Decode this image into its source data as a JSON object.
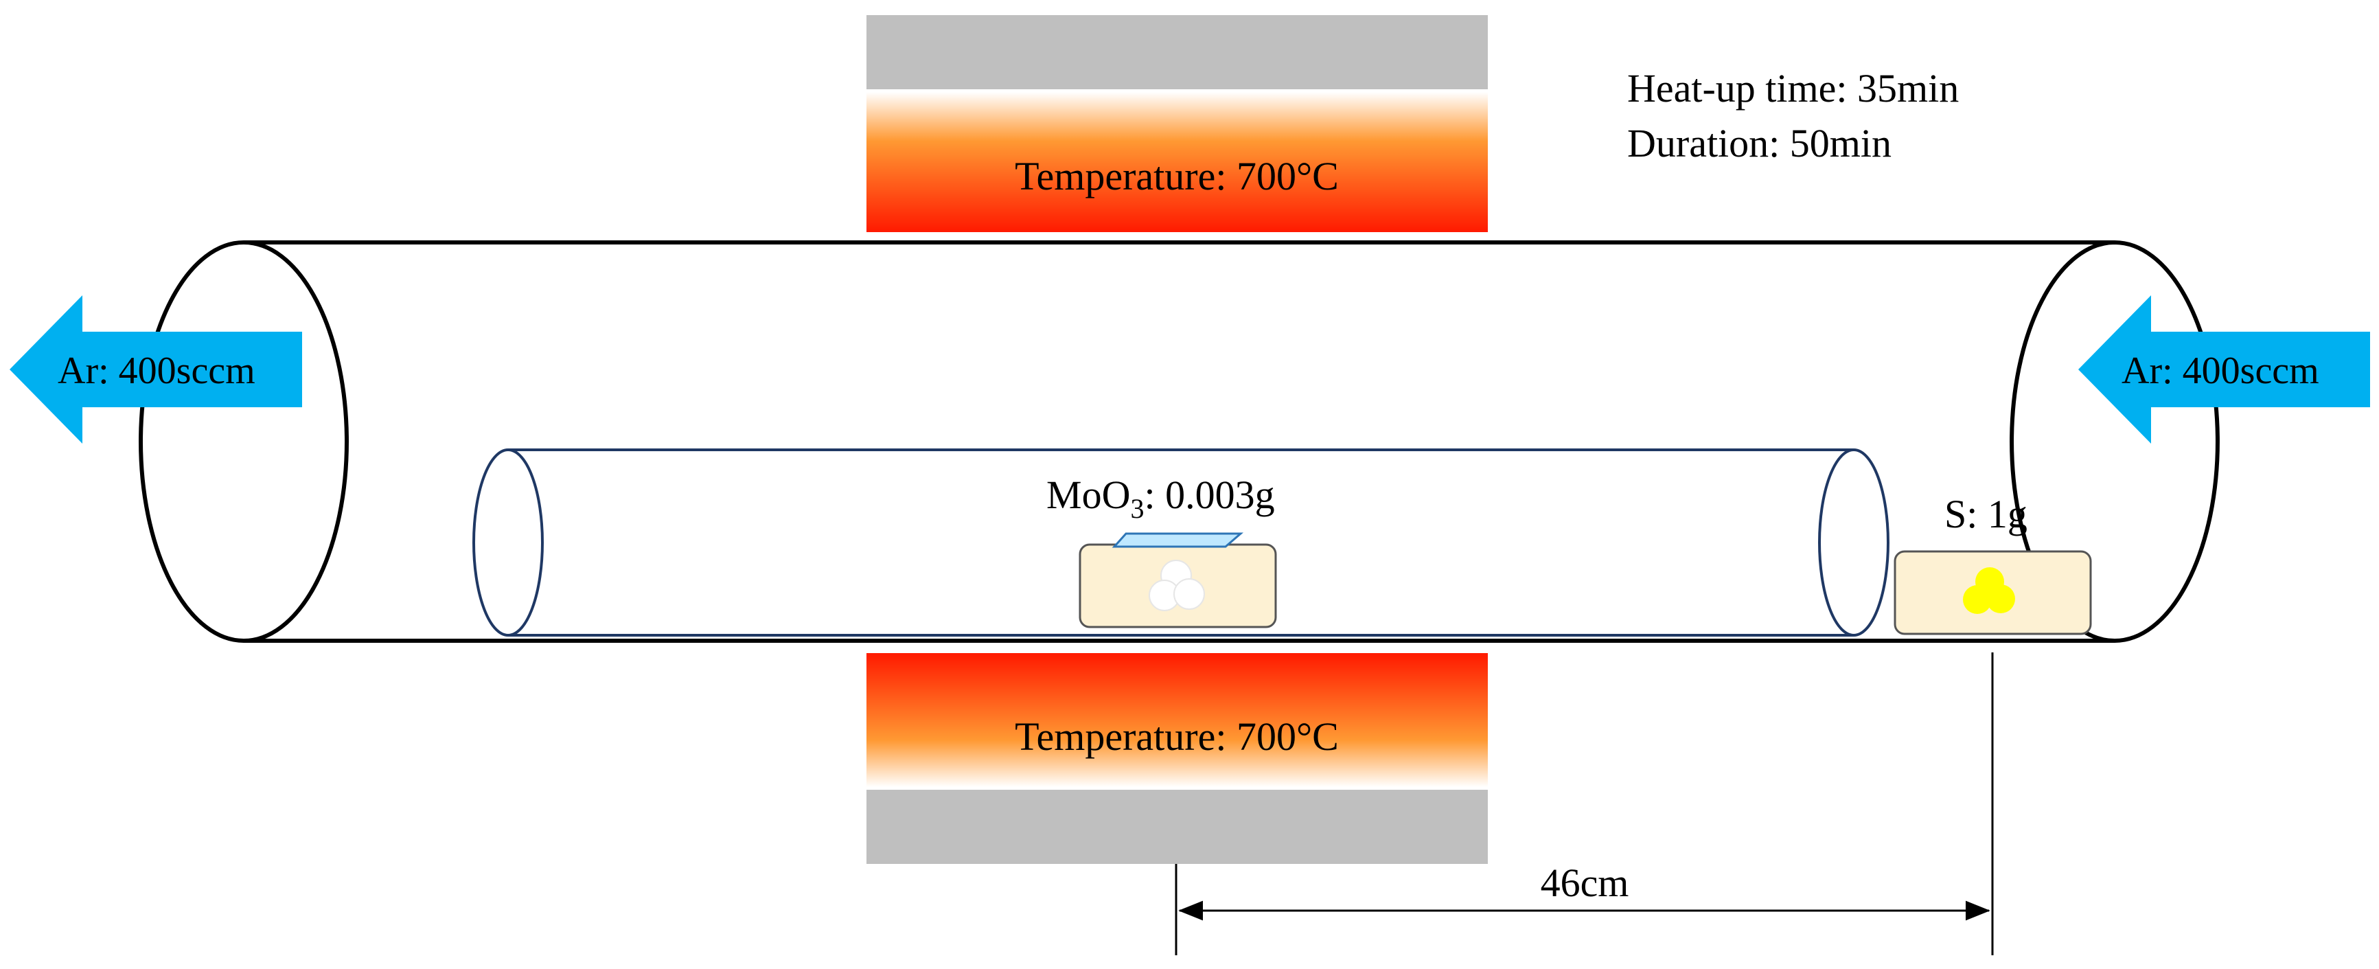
{
  "furnace": {
    "top_label": "Temperature: 700°C",
    "bottom_label": "Temperature: 700°C",
    "heater_gradient": [
      "#ffffff",
      "#ff9933",
      "#ff1a00"
    ],
    "shell_color": "#bfbfbf"
  },
  "process": {
    "heatup": "Heat-up time: 35min",
    "duration": "Duration: 50min"
  },
  "gas_flow": {
    "left": "Ar: 400sccm",
    "right": "Ar: 400sccm",
    "arrow_color": "#00b0f0"
  },
  "precursors": {
    "moo3_prefix": "MoO",
    "moo3_sub": "3",
    "moo3_suffix": ": 0.003g",
    "sulfur": "S: 1g",
    "boat_color": "#fdf1d3",
    "moo3_color": "#ffffff",
    "sulfur_color": "#ffff00",
    "substrate_color": "#bfe8ff"
  },
  "distance": "46cm",
  "colors": {
    "outer_tube": "#000000",
    "inner_tube": "#1f3864"
  }
}
